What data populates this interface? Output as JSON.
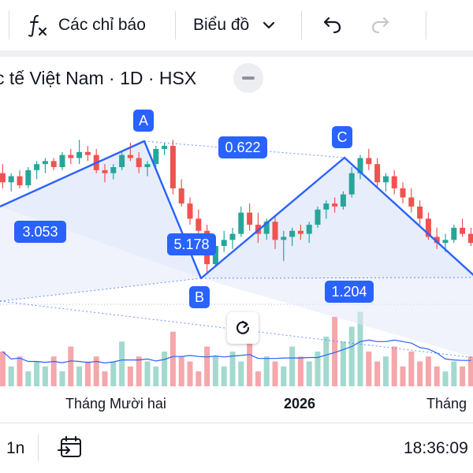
{
  "toolbar": {
    "indicators_label": "Các chỉ báo",
    "chart_type_label": "Biểu đồ",
    "indicators_icon": "function-fx-icon",
    "dropdown_icon": "chevron-down-icon",
    "undo_icon": "undo-icon",
    "redo_icon": "redo-icon"
  },
  "legend": {
    "symbol_title": "c tế Việt Nam · 1D · HSX",
    "collapse_icon": "minus-icon"
  },
  "pattern": {
    "points": [
      {
        "label": "A"
      },
      {
        "label": "B"
      },
      {
        "label": "C"
      }
    ],
    "ratios": [
      "3.053",
      "5.178",
      "0.622",
      "1.204"
    ],
    "color": "#2962ff",
    "fill": "#e3eafa"
  },
  "chart_data": {
    "type": "candlestick",
    "up_color": "#26a69a",
    "down_color": "#ef5350",
    "volume_up_color": "#a3d9cf",
    "volume_down_color": "#f5a7ab",
    "volume_ma_color": "#2962ff",
    "time_labels": [
      "Tháng Mười hai",
      "2026",
      "Tháng"
    ],
    "candles": [
      [
        55,
        58,
        50,
        52
      ],
      [
        52,
        55,
        49,
        54
      ],
      [
        54,
        56,
        50,
        51
      ],
      [
        51,
        57,
        50,
        56
      ],
      [
        56,
        59,
        53,
        58
      ],
      [
        58,
        60,
        55,
        59
      ],
      [
        59,
        60,
        56,
        57
      ],
      [
        57,
        62,
        56,
        61
      ],
      [
        61,
        63,
        58,
        60
      ],
      [
        60,
        66,
        58,
        62
      ],
      [
        62,
        64,
        59,
        61
      ],
      [
        61,
        63,
        55,
        56
      ],
      [
        56,
        58,
        52,
        55
      ],
      [
        55,
        58,
        53,
        57
      ],
      [
        57,
        62,
        56,
        61
      ],
      [
        61,
        65,
        59,
        60
      ],
      [
        60,
        62,
        55,
        57
      ],
      [
        57,
        59,
        54,
        58
      ],
      [
        58,
        64,
        57,
        63
      ],
      [
        63,
        65,
        61,
        64
      ],
      [
        64,
        66,
        48,
        50
      ],
      [
        50,
        53,
        44,
        45
      ],
      [
        45,
        47,
        38,
        40
      ],
      [
        40,
        43,
        34,
        36
      ],
      [
        36,
        38,
        22,
        25
      ],
      [
        25,
        33,
        24,
        31
      ],
      [
        31,
        36,
        29,
        33
      ],
      [
        33,
        37,
        30,
        35
      ],
      [
        35,
        44,
        34,
        42
      ],
      [
        42,
        45,
        36,
        38
      ],
      [
        38,
        42,
        32,
        35
      ],
      [
        35,
        40,
        33,
        39
      ],
      [
        39,
        41,
        30,
        33
      ],
      [
        33,
        36,
        26,
        34
      ],
      [
        34,
        37,
        31,
        36
      ],
      [
        36,
        38,
        33,
        35
      ],
      [
        35,
        39,
        32,
        38
      ],
      [
        38,
        44,
        37,
        43
      ],
      [
        43,
        46,
        40,
        45
      ],
      [
        45,
        47,
        42,
        44
      ],
      [
        44,
        49,
        43,
        48
      ],
      [
        48,
        57,
        47,
        55
      ],
      [
        55,
        61,
        53,
        60
      ],
      [
        60,
        63,
        56,
        58
      ],
      [
        58,
        60,
        50,
        52
      ],
      [
        52,
        55,
        49,
        54
      ],
      [
        54,
        56,
        48,
        50
      ],
      [
        50,
        52,
        45,
        47
      ],
      [
        47,
        50,
        42,
        44
      ],
      [
        44,
        46,
        38,
        40
      ],
      [
        40,
        42,
        33,
        34
      ],
      [
        34,
        37,
        30,
        32
      ],
      [
        32,
        35,
        29,
        33
      ],
      [
        33,
        38,
        32,
        37
      ],
      [
        37,
        40,
        34,
        35
      ],
      [
        35,
        37,
        31,
        32
      ]
    ],
    "volumes": [
      7,
      4,
      6,
      3,
      5,
      4,
      6,
      3,
      8,
      4,
      5,
      6,
      3,
      5,
      9,
      4,
      6,
      5,
      4,
      7,
      11,
      6,
      5,
      3,
      8,
      6,
      4,
      7,
      5,
      9,
      3,
      6,
      5,
      4,
      8,
      6,
      5,
      7,
      10,
      14,
      9,
      12,
      15,
      7,
      5,
      6,
      8,
      4,
      7,
      5,
      6,
      4,
      3,
      5,
      4,
      6
    ]
  },
  "bottom_bar": {
    "range_label": "1n",
    "calendar_icon": "calendar-goto-icon",
    "time": "18:36:09"
  },
  "reset_icon": "reset-rotate-icon"
}
